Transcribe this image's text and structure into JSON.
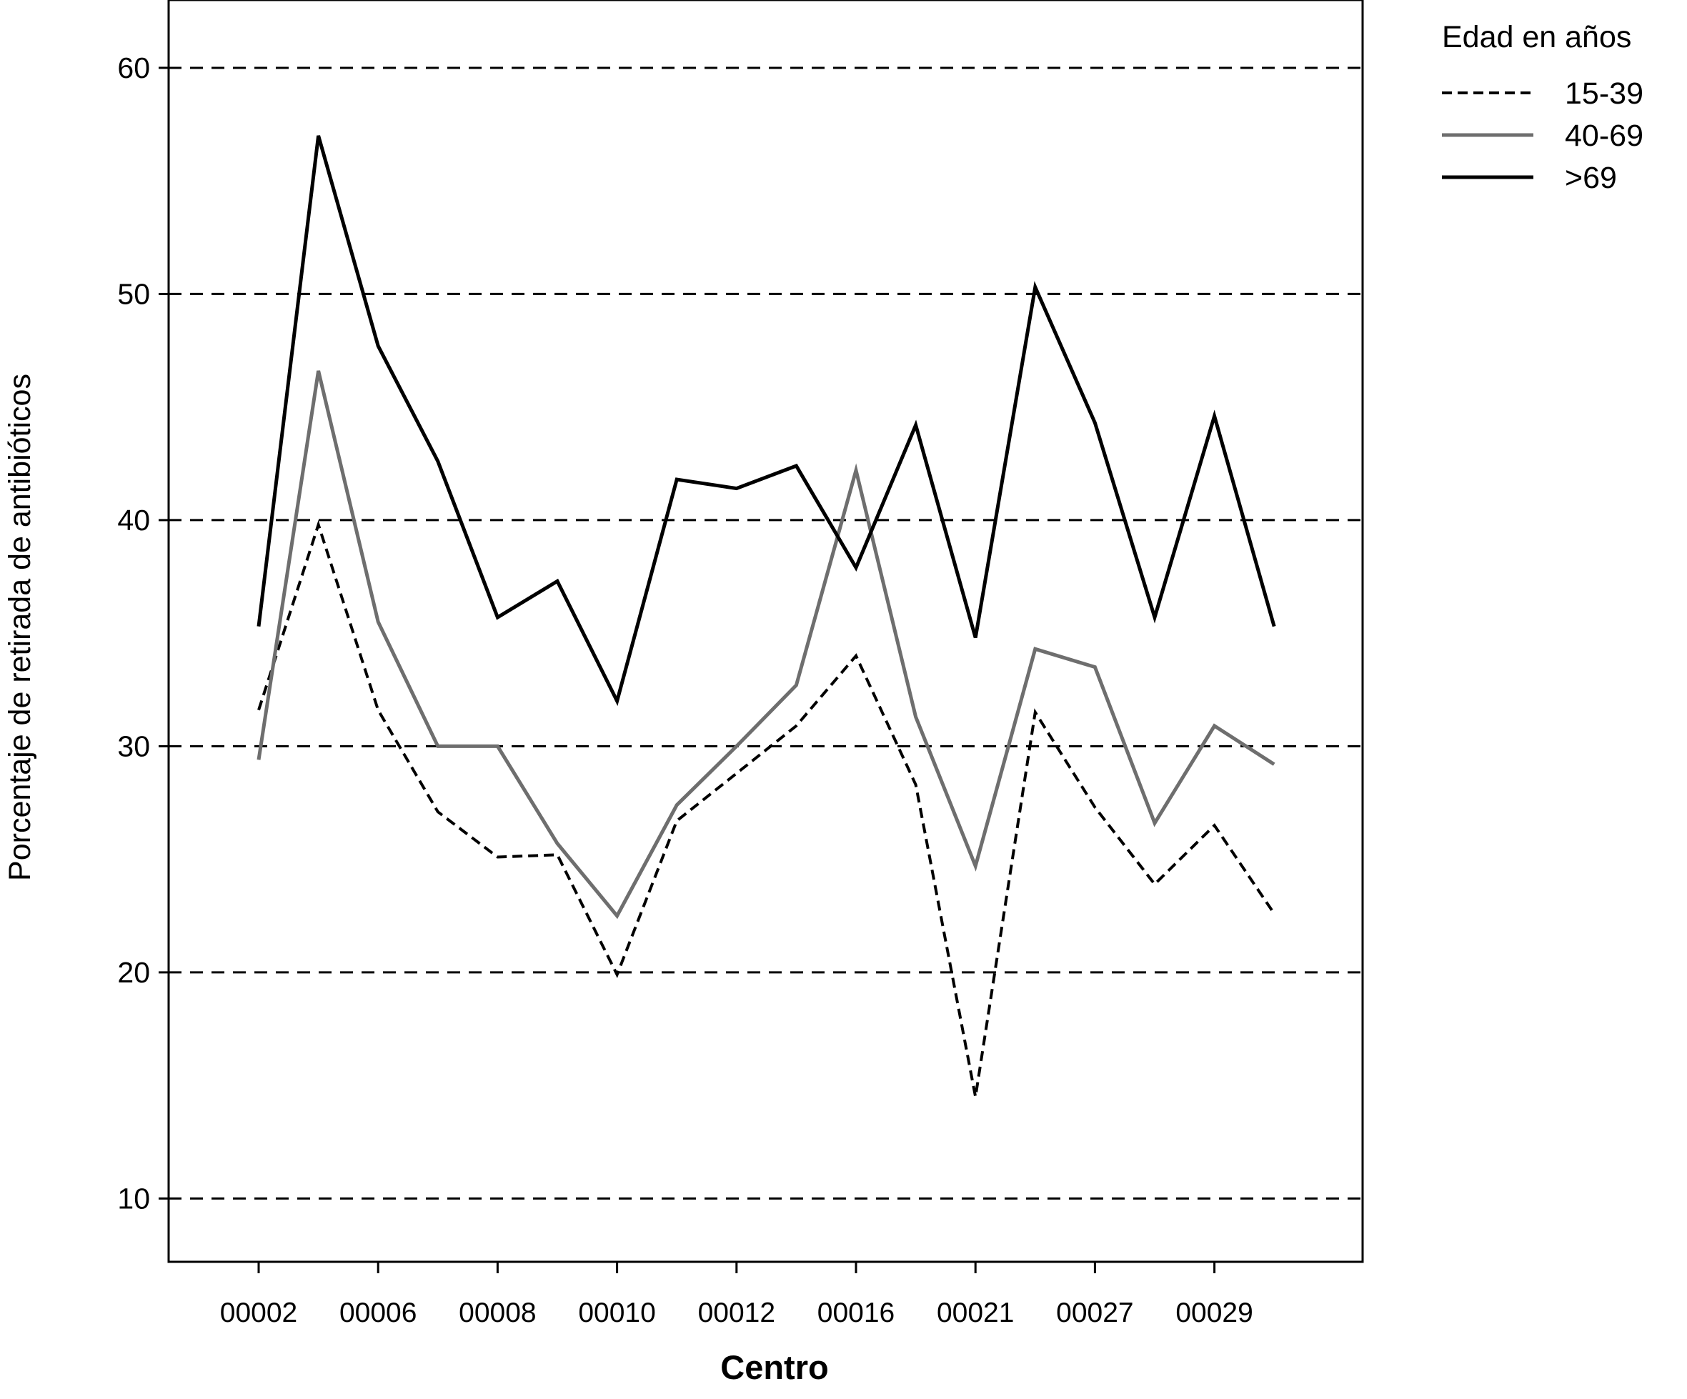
{
  "chart_data": {
    "type": "line",
    "xlabel": "Centro",
    "ylabel": "Porcentaje de retirada de antibióticos",
    "x_tick_labels": [
      "00002",
      "00006",
      "00008",
      "00010",
      "00012",
      "00016",
      "00021",
      "00027",
      "00029"
    ],
    "y_ticks": [
      10,
      20,
      30,
      40,
      50,
      60
    ],
    "ylim": [
      7.2,
      63
    ],
    "grid": "horizontal dashed",
    "legend": {
      "title": "Edad en años",
      "placement": "top-right outside"
    },
    "series": [
      {
        "name": "15-39",
        "style": "dashed",
        "color": "#000000",
        "values": [
          31.6,
          39.8,
          31.6,
          27.1,
          25.1,
          25.2,
          19.9,
          26.7,
          28.8,
          30.9,
          34.0,
          28.3,
          14.5,
          31.5,
          27.3,
          23.9,
          26.5,
          22.6
        ]
      },
      {
        "name": "40-69",
        "style": "solid",
        "color": "#6e6e6e",
        "values": [
          29.4,
          46.6,
          35.5,
          30.0,
          30.0,
          25.7,
          22.5,
          27.4,
          30.0,
          32.7,
          42.2,
          31.3,
          24.7,
          34.3,
          33.5,
          26.6,
          30.9,
          29.2
        ]
      },
      {
        "name": ">69",
        "style": "solid",
        "color": "#000000",
        "values": [
          35.3,
          57.0,
          47.7,
          42.6,
          35.7,
          37.3,
          32.0,
          41.8,
          41.4,
          42.4,
          37.9,
          44.2,
          34.8,
          50.3,
          44.3,
          35.7,
          44.6,
          35.3
        ]
      }
    ]
  }
}
